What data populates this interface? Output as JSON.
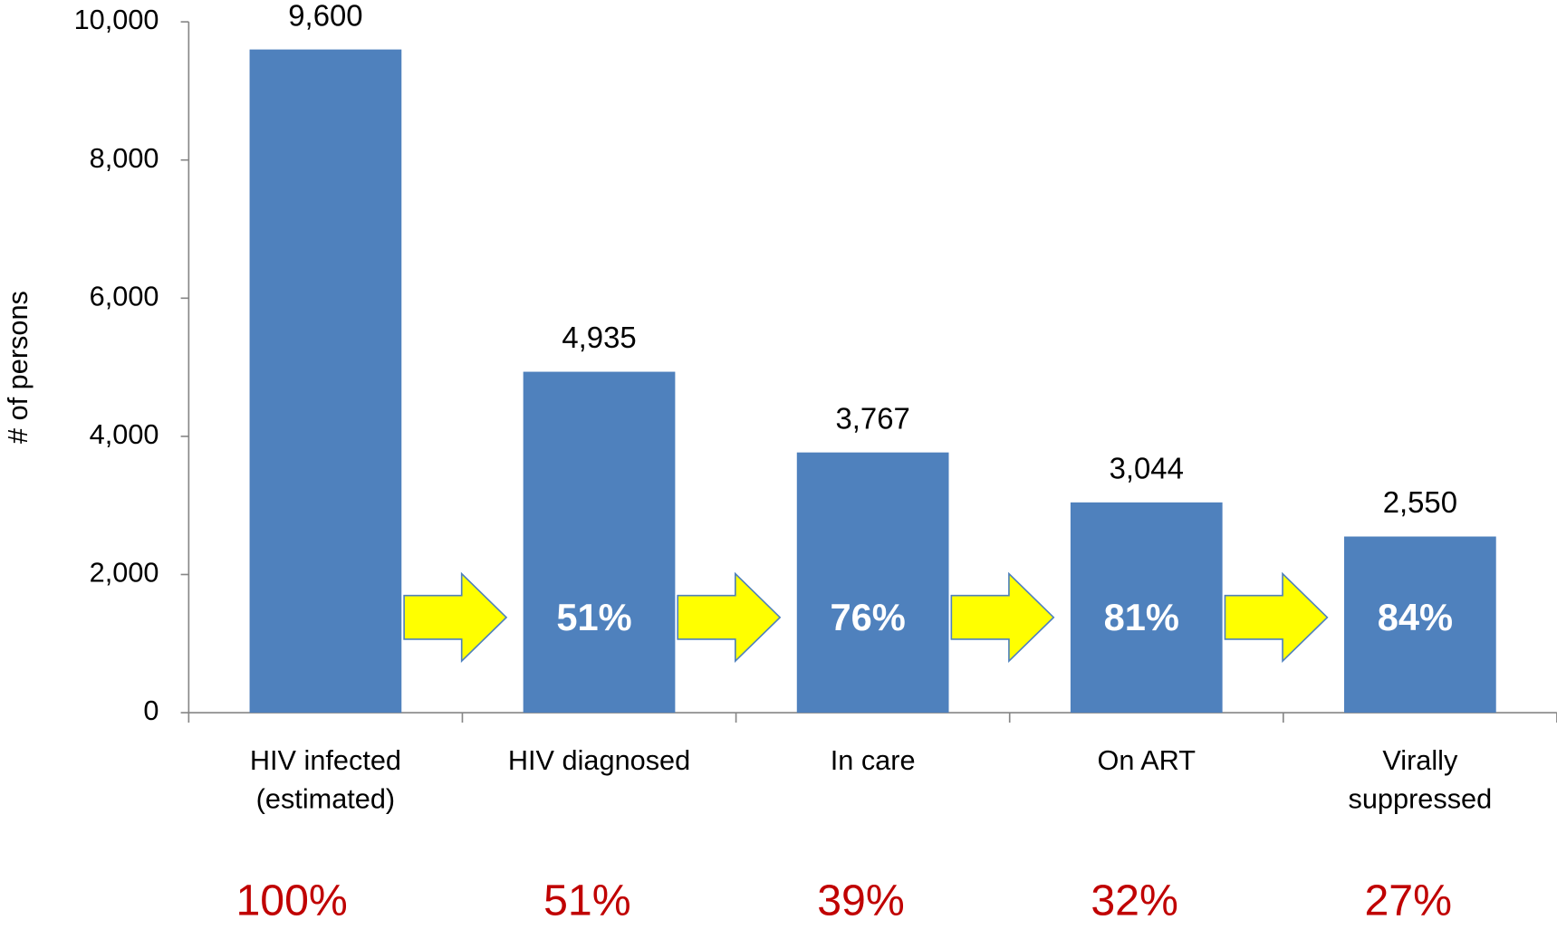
{
  "chart_data": {
    "type": "bar",
    "y_axis_label": "# of persons",
    "categories": [
      [
        "HIV infected",
        "(estimated)"
      ],
      [
        "HIV diagnosed"
      ],
      [
        "In care"
      ],
      [
        "On ART"
      ],
      [
        "Virally",
        "suppressed"
      ]
    ],
    "values": [
      9600,
      4935,
      3767,
      3044,
      2550
    ],
    "value_labels": [
      "9,600",
      "4,935",
      "3,767",
      "3,044",
      "2,550"
    ],
    "color": "#4f81bd",
    "step_percentages": [
      null,
      "51%",
      "76%",
      "81%",
      "84%"
    ],
    "cumulative_percentages": [
      "100%",
      "51%",
      "39%",
      "32%",
      "27%"
    ],
    "ylim": [
      0,
      10000
    ],
    "yticks": [
      0,
      {
        "value": 2000,
        "label": "2,000"
      },
      {
        "value": 4000,
        "label": "4,000"
      },
      {
        "value": 6000,
        "label": "6,000"
      },
      {
        "value": 8000,
        "label": "8,000"
      },
      {
        "value": 10000,
        "label": "10,000"
      }
    ],
    "grid": false
  }
}
